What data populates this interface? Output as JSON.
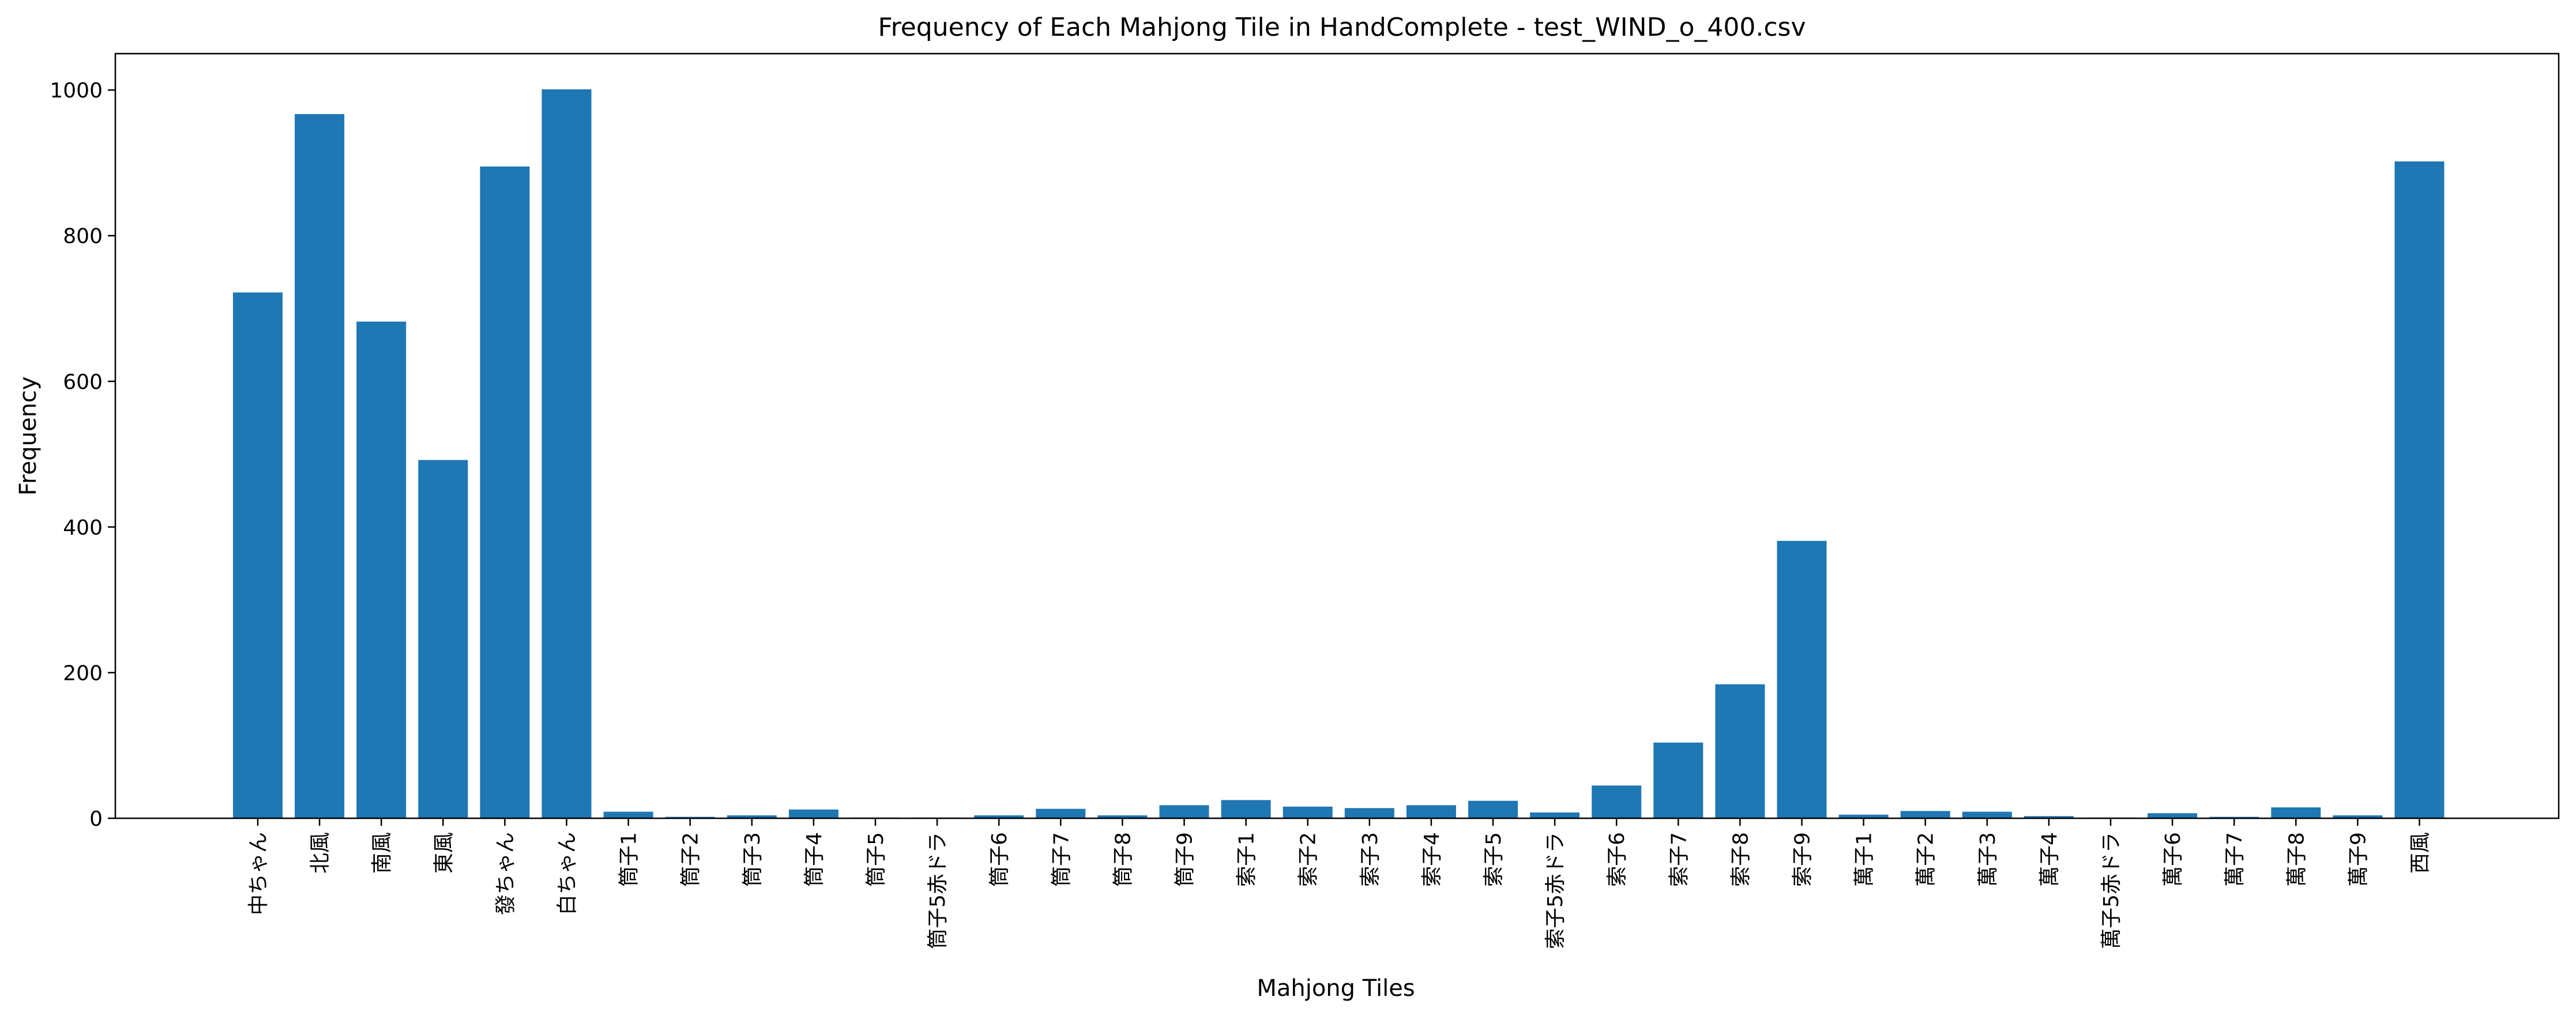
{
  "chart_data": {
    "type": "bar",
    "title": "Frequency of Each Mahjong Tile in HandComplete - test_WIND_o_400.csv",
    "xlabel": "Mahjong Tiles",
    "ylabel": "Frequency",
    "ylim": [
      0,
      1050
    ],
    "yticks": [
      0,
      200,
      400,
      600,
      800,
      1000
    ],
    "grid": false,
    "bar_color": "#1f77b4",
    "categories": [
      "中ちゃん",
      "北風",
      "南風",
      "東風",
      "發ちゃん",
      "白ちゃん",
      "筒子1",
      "筒子2",
      "筒子3",
      "筒子4",
      "筒子5",
      "筒子5赤ドラ",
      "筒子6",
      "筒子7",
      "筒子8",
      "筒子9",
      "索子1",
      "索子2",
      "索子3",
      "索子4",
      "索子5",
      "索子5赤ドラ",
      "索子6",
      "索子7",
      "索子8",
      "索子9",
      "萬子1",
      "萬子2",
      "萬子3",
      "萬子4",
      "萬子5赤ドラ",
      "萬子6",
      "萬子7",
      "萬子8",
      "萬子9",
      "西風"
    ],
    "values": [
      722,
      967,
      682,
      492,
      895,
      1001,
      9,
      2,
      4,
      12,
      1,
      1,
      4,
      13,
      4,
      18,
      25,
      16,
      14,
      18,
      24,
      8,
      45,
      104,
      184,
      381,
      5,
      10,
      9,
      3,
      1,
      7,
      2,
      15,
      4,
      902
    ]
  }
}
